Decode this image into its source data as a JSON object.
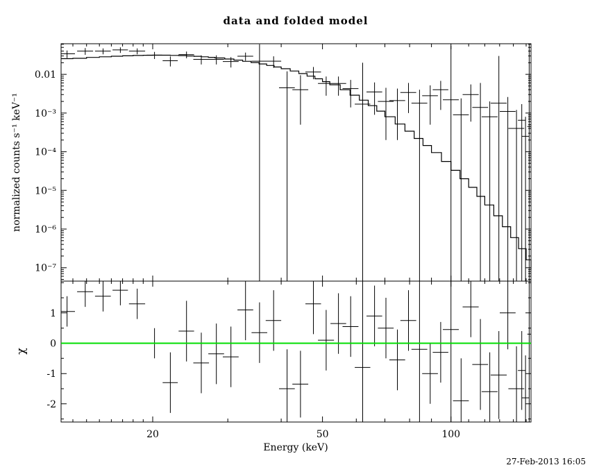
{
  "title": "data and folded model",
  "timestamp": "27-Feb-2013 16:05",
  "chart_data": {
    "type": "line",
    "panels": [
      "top-spectrum",
      "bottom-residuals"
    ],
    "xlabel": "Energy (keV)",
    "xlim": [
      12.2,
      154
    ],
    "xscale": "log",
    "grid": false,
    "colors": {
      "data": "#000000",
      "model": "#000000",
      "background": "#ffffff",
      "zero_line": "#00dd00"
    },
    "xticks": [
      {
        "v": 20,
        "label": "20"
      },
      {
        "v": 50,
        "label": "50"
      },
      {
        "v": 100,
        "label": "100"
      }
    ],
    "top": {
      "ylabel": "normalized counts s⁻¹ keV⁻¹",
      "yscale": "log",
      "ylim": [
        4.5e-08,
        0.062
      ],
      "yticks": [
        {
          "v": 0.01,
          "label": "0.01"
        },
        {
          "v": 0.001,
          "label": "10⁻³"
        },
        {
          "v": 0.0001,
          "label": "10⁻⁴"
        },
        {
          "v": 1e-05,
          "label": "10⁻⁵"
        },
        {
          "v": 1e-06,
          "label": "10⁻⁶"
        },
        {
          "v": 1e-07,
          "label": "10⁻⁷"
        }
      ],
      "model_label": "folded model",
      "model": {
        "e": [
          12.2,
          13,
          14,
          15,
          16,
          17,
          18,
          19,
          20,
          21,
          22,
          23,
          24,
          25,
          26,
          27,
          28,
          29.5,
          31,
          32.5,
          34,
          35.5,
          37,
          38.5,
          40,
          42,
          44,
          46,
          48,
          50,
          52,
          55,
          58,
          61,
          64,
          67,
          70,
          74,
          78,
          82,
          86,
          90,
          95,
          100,
          105,
          110,
          115,
          120,
          126,
          132,
          138,
          144,
          150,
          154
        ],
        "f": [
          0.0255,
          0.026,
          0.0275,
          0.0285,
          0.0295,
          0.0302,
          0.0308,
          0.0312,
          0.0314,
          0.0313,
          0.031,
          0.0306,
          0.03,
          0.0293,
          0.0285,
          0.0276,
          0.0266,
          0.025,
          0.0234,
          0.0218,
          0.0202,
          0.0186,
          0.017,
          0.0155,
          0.014,
          0.0122,
          0.0105,
          0.009,
          0.0077,
          0.0065,
          0.0054,
          0.004,
          0.0029,
          0.00215,
          0.00155,
          0.00112,
          0.0008,
          0.00052,
          0.00034,
          0.00022,
          0.000145,
          9.5e-05,
          5.6e-05,
          3.3e-05,
          2e-05,
          1.2e-05,
          7e-06,
          4.2e-06,
          2.2e-06,
          1.15e-06,
          6e-07,
          3.1e-07,
          1.6e-07,
          9e-08
        ]
      },
      "points_format": "[energy_keV, half_binwidth_keV, value, err_low_bound, err_high_bound]",
      "points": [
        [
          12.6,
          0.55,
          0.034,
          0.0265,
          0.0415
        ],
        [
          13.9,
          0.6,
          0.04,
          0.032,
          0.048
        ],
        [
          15.3,
          0.65,
          0.04,
          0.033,
          0.047
        ],
        [
          16.8,
          0.7,
          0.043,
          0.036,
          0.05
        ],
        [
          18.4,
          0.8,
          0.04,
          0.033,
          0.047
        ],
        [
          20.2,
          0.85,
          0.0315,
          0.025,
          0.038
        ],
        [
          22.0,
          0.9,
          0.0225,
          0.016,
          0.029
        ],
        [
          24.0,
          1.0,
          0.0325,
          0.026,
          0.039
        ],
        [
          26.0,
          1.1,
          0.0245,
          0.018,
          0.031
        ],
        [
          28.2,
          1.2,
          0.0245,
          0.018,
          0.031
        ],
        [
          30.5,
          1.3,
          0.0215,
          0.015,
          0.028
        ],
        [
          33.0,
          1.4,
          0.0295,
          0.0225,
          0.0365
        ],
        [
          35.6,
          1.5,
          0.022,
          1e-08,
          0.06
        ],
        [
          38.4,
          1.6,
          0.022,
          0.0148,
          0.0293
        ],
        [
          41.3,
          1.75,
          0.0045,
          1e-08,
          0.012
        ],
        [
          44.4,
          1.9,
          0.004,
          0.0005,
          0.0095
        ],
        [
          47.6,
          2.0,
          0.0115,
          0.0075,
          0.0155
        ],
        [
          51.0,
          2.2,
          0.0058,
          0.0028,
          0.0088
        ],
        [
          54.5,
          2.3,
          0.0058,
          0.0028,
          0.0088
        ],
        [
          58.2,
          2.5,
          0.0043,
          0.0014,
          0.0072
        ],
        [
          62.1,
          2.6,
          0.0017,
          1e-08,
          0.02
        ],
        [
          66.2,
          2.8,
          0.0035,
          0.0009,
          0.0062
        ],
        [
          70.4,
          3.0,
          0.002,
          0.0002,
          0.0045
        ],
        [
          74.9,
          3.2,
          0.0021,
          0.0002,
          0.0043
        ],
        [
          79.5,
          3.4,
          0.0034,
          0.001,
          0.006
        ],
        [
          84.4,
          3.6,
          0.0018,
          1e-08,
          0.004
        ],
        [
          89.4,
          3.8,
          0.0028,
          0.0005,
          0.0052
        ],
        [
          94.6,
          4.0,
          0.004,
          0.0012,
          0.0068
        ],
        [
          100.0,
          4.3,
          0.0022,
          1e-08,
          0.055
        ],
        [
          105.6,
          4.5,
          0.0009,
          1e-08,
          0.0024
        ],
        [
          111.3,
          4.8,
          0.003,
          0.0006,
          0.0055
        ],
        [
          117.2,
          5.0,
          0.0014,
          1e-08,
          0.006
        ],
        [
          123.3,
          5.3,
          0.0008,
          1e-08,
          0.002
        ],
        [
          129.5,
          5.6,
          0.0018,
          1e-08,
          0.03
        ],
        [
          135.9,
          5.8,
          0.0011,
          1e-08,
          0.0026
        ],
        [
          142.4,
          6.1,
          0.0004,
          1e-08,
          0.0012
        ],
        [
          146.5,
          3.0,
          0.00065,
          1e-08,
          0.0017
        ],
        [
          149.5,
          3.0,
          0.00025,
          1e-08,
          0.0008
        ],
        [
          152.5,
          1.5,
          0.00045,
          1e-08,
          0.06
        ]
      ]
    },
    "bottom": {
      "ylabel": "χ",
      "yscale": "linear",
      "ylim": [
        -2.6,
        2.05
      ],
      "yticks": [
        {
          "v": 1,
          "label": "1"
        },
        {
          "v": 0,
          "label": "0"
        },
        {
          "v": -1,
          "label": "-1"
        },
        {
          "v": -2,
          "label": "-2"
        }
      ],
      "zero_line": 0,
      "points_format": "[energy_keV, half_binwidth_keV, chi, err_low_bound, err_high_bound]",
      "points": [
        [
          12.6,
          0.55,
          1.05,
          0.55,
          1.55
        ],
        [
          13.9,
          0.6,
          1.7,
          1.2,
          2.2
        ],
        [
          15.3,
          0.65,
          1.55,
          1.05,
          2.05
        ],
        [
          16.8,
          0.7,
          1.75,
          1.25,
          2.25
        ],
        [
          18.4,
          0.8,
          1.3,
          0.8,
          1.8
        ],
        [
          20.2,
          0.85,
          0.0,
          -0.5,
          0.5
        ],
        [
          22.0,
          0.9,
          -1.3,
          -2.3,
          -0.3
        ],
        [
          24.0,
          1.0,
          0.4,
          -0.6,
          1.4
        ],
        [
          26.0,
          1.1,
          -0.65,
          -1.65,
          0.35
        ],
        [
          28.2,
          1.2,
          -0.35,
          -1.35,
          0.65
        ],
        [
          30.5,
          1.3,
          -0.45,
          -1.45,
          0.55
        ],
        [
          33.0,
          1.4,
          1.1,
          0.1,
          2.1
        ],
        [
          35.6,
          1.5,
          0.35,
          -0.65,
          1.35
        ],
        [
          38.4,
          1.6,
          0.75,
          -0.25,
          1.75
        ],
        [
          41.3,
          1.75,
          -1.5,
          -2.8,
          -0.2
        ],
        [
          44.4,
          1.9,
          -1.35,
          -2.45,
          -0.25
        ],
        [
          47.6,
          2.0,
          1.3,
          0.3,
          2.3
        ],
        [
          51.0,
          2.2,
          0.1,
          -0.9,
          1.1
        ],
        [
          54.5,
          2.3,
          0.65,
          -0.35,
          1.65
        ],
        [
          58.2,
          2.5,
          0.55,
          -0.45,
          1.55
        ],
        [
          62.1,
          2.6,
          -0.8,
          -4.0,
          3.0
        ],
        [
          66.2,
          2.8,
          0.9,
          -0.1,
          1.9
        ],
        [
          70.4,
          3.0,
          0.5,
          -0.5,
          1.5
        ],
        [
          74.9,
          3.2,
          -0.55,
          -1.55,
          0.45
        ],
        [
          79.5,
          3.4,
          0.75,
          -0.25,
          1.75
        ],
        [
          84.4,
          3.6,
          -0.2,
          -3.5,
          3.1
        ],
        [
          89.4,
          3.8,
          -1.0,
          -2.0,
          0.0
        ],
        [
          94.6,
          4.0,
          -0.3,
          -1.3,
          0.7
        ],
        [
          100.0,
          4.3,
          0.45,
          -3.5,
          4.0
        ],
        [
          105.6,
          4.5,
          -1.9,
          -3.3,
          -0.5
        ],
        [
          111.3,
          4.8,
          1.2,
          0.2,
          2.2
        ],
        [
          117.2,
          5.0,
          -0.7,
          -2.2,
          0.8
        ],
        [
          123.3,
          5.3,
          -1.6,
          -2.9,
          -0.3
        ],
        [
          129.5,
          5.6,
          -1.05,
          -2.5,
          0.4
        ],
        [
          135.9,
          5.8,
          1.0,
          -0.2,
          2.2
        ],
        [
          142.4,
          6.1,
          -1.5,
          -2.9,
          -0.1
        ],
        [
          146.5,
          3.0,
          -0.9,
          -2.2,
          0.4
        ],
        [
          149.5,
          3.0,
          -1.8,
          -3.2,
          -0.4
        ],
        [
          152.5,
          1.5,
          0.3,
          -4.0,
          4.0
        ]
      ]
    }
  }
}
